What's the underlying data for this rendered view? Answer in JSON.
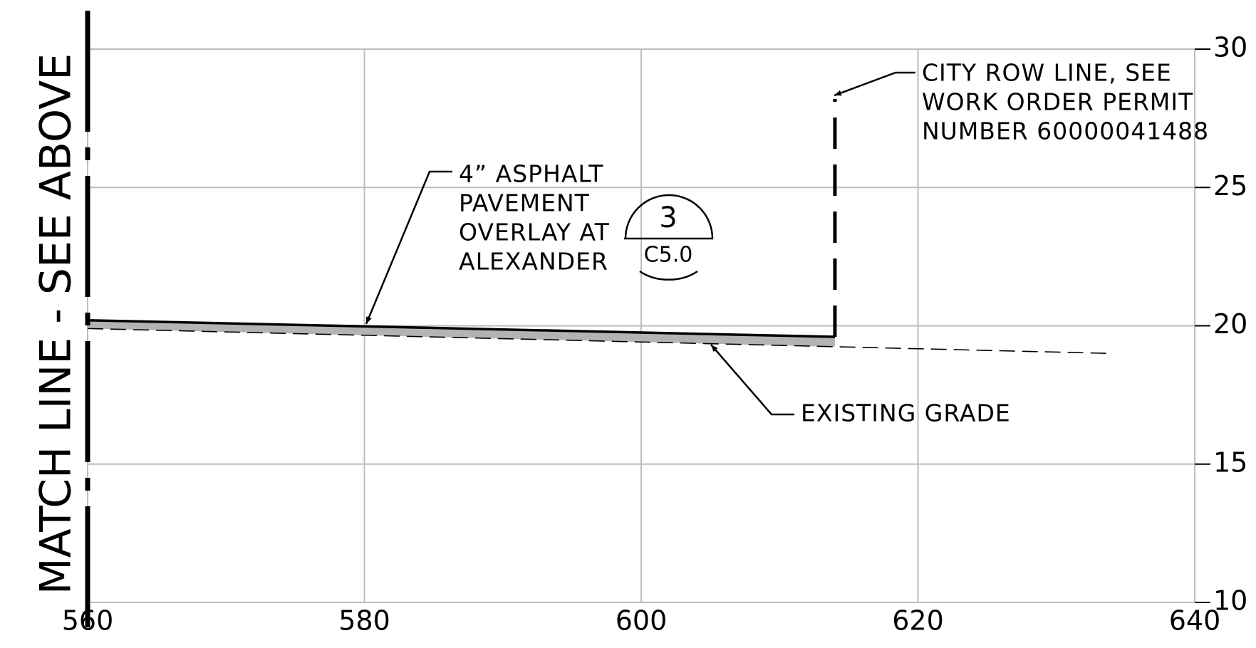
{
  "chart_data": {
    "type": "line",
    "xlim": [
      560,
      640
    ],
    "ylim": [
      10,
      30
    ],
    "xticks": [
      560,
      580,
      600,
      620,
      640
    ],
    "yticks": [
      10,
      15,
      20,
      25,
      30
    ],
    "grid": true,
    "series": [
      {
        "color": "#000000",
        "x": [
          560,
          614
        ],
        "values": [
          20.2,
          19.6
        ]
      },
      {
        "color": "#000000",
        "dashed": true,
        "x": [
          560,
          634
        ],
        "values": [
          19.9,
          19.0
        ]
      },
      {
        "color": "#000000",
        "dashed": true,
        "thick": true,
        "x": [
          614,
          614
        ],
        "values": [
          19.6,
          28.2
        ]
      }
    ],
    "fill_color": "#b3b3b3",
    "match_line": "MATCH LINE - SEE ABOVE",
    "annotations": [
      {
        "lines": [
          "CITY ROW LINE, SEE",
          "WORK ORDER PERMIT",
          "NUMBER 60000041488"
        ]
      },
      {
        "lines": [
          "4” ASPHALT",
          "PAVEMENT",
          "OVERLAY AT",
          "ALEXANDER"
        ]
      },
      {
        "lines": [
          "EXISTING GRADE"
        ]
      }
    ],
    "callout": {
      "number": "3",
      "sheet": "C5.0"
    }
  }
}
